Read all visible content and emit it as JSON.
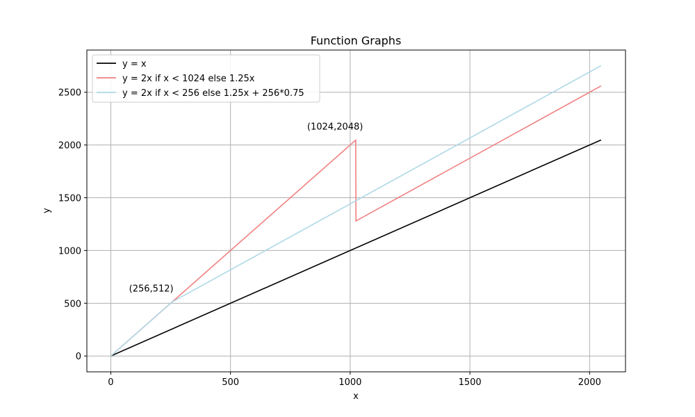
{
  "chart_data": {
    "type": "line",
    "title": "Function Graphs",
    "xlabel": "x",
    "ylabel": "y",
    "xlim": [
      -100,
      2150
    ],
    "ylim": [
      -150,
      2900
    ],
    "xticks": [
      0,
      500,
      1000,
      1500,
      2000
    ],
    "yticks": [
      0,
      500,
      1000,
      1500,
      2000,
      2500
    ],
    "grid": true,
    "legend_position": "top-left",
    "series": [
      {
        "name": "y = x",
        "color": "#000000",
        "x": [
          0,
          2048
        ],
        "y": [
          0,
          2048
        ]
      },
      {
        "name": "y = 2x if x < 1024 else 1.25x",
        "color": "#f08080",
        "x": [
          0,
          1023,
          1024,
          2048
        ],
        "y": [
          0,
          2046,
          1280,
          2560
        ]
      },
      {
        "name": "y = 2x if x < 256 else 1.25x + 256*0.75",
        "color": "#add8e6",
        "x": [
          0,
          256,
          2048
        ],
        "y": [
          0,
          512,
          2752
        ]
      }
    ],
    "annotations": [
      {
        "text": "(256,512)",
        "x": 256,
        "y": 512
      },
      {
        "text": "(1024,2048)",
        "x": 1024,
        "y": 2048
      }
    ]
  }
}
